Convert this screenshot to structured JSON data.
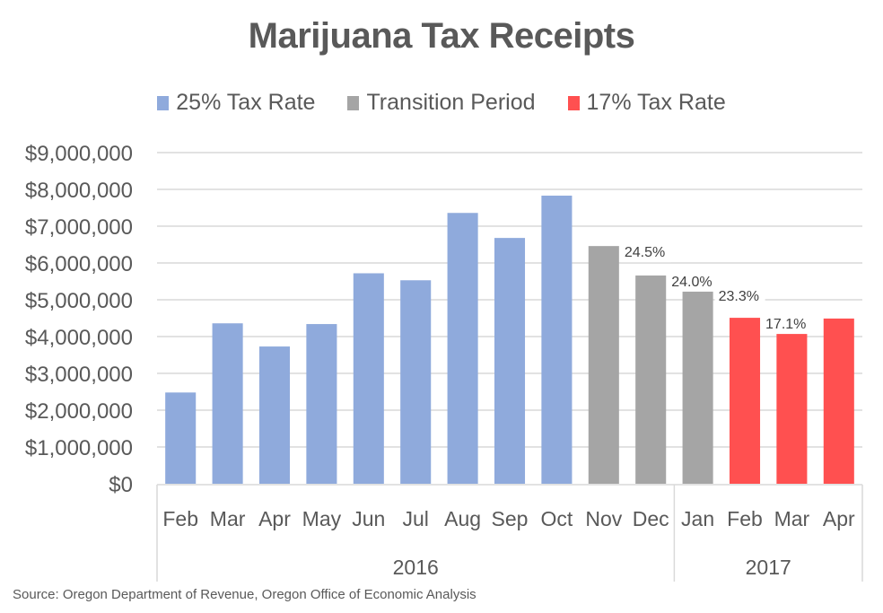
{
  "chart_data": {
    "type": "bar",
    "title": "Marijuana Tax Receipts",
    "xlabel": "",
    "ylabel": "",
    "ylim": [
      0,
      9000000
    ],
    "yticks": [
      0,
      1000000,
      2000000,
      3000000,
      4000000,
      5000000,
      6000000,
      7000000,
      8000000,
      9000000
    ],
    "ytick_labels": [
      "$0",
      "$1,000,000",
      "$2,000,000",
      "$3,000,000",
      "$4,000,000",
      "$5,000,000",
      "$6,000,000",
      "$7,000,000",
      "$8,000,000",
      "$9,000,000"
    ],
    "grid": true,
    "legend_position": "top-center",
    "legend": [
      {
        "name": "25% Tax Rate",
        "color": "#8FAADC"
      },
      {
        "name": "Transition Period",
        "color": "#A5A5A5"
      },
      {
        "name": "17% Tax Rate",
        "color": "#FF5050"
      }
    ],
    "categories": [
      "Feb",
      "Mar",
      "Apr",
      "May",
      "Jun",
      "Jul",
      "Aug",
      "Sep",
      "Oct",
      "Nov",
      "Dec",
      "Jan",
      "Feb",
      "Mar",
      "Apr"
    ],
    "category_groups": [
      {
        "label": "2016",
        "count": 11
      },
      {
        "label": "2017",
        "count": 4
      }
    ],
    "values": [
      2480000,
      4360000,
      3730000,
      4340000,
      5720000,
      5530000,
      7360000,
      6680000,
      7830000,
      6460000,
      5660000,
      5270000,
      4510000,
      4490000,
      4490000
    ],
    "series_index": [
      0,
      0,
      0,
      0,
      0,
      0,
      0,
      0,
      0,
      1,
      1,
      1,
      2,
      2,
      2
    ],
    "data_labels": [
      "",
      "",
      "",
      "",
      "",
      "",
      "",
      "",
      "",
      "24.5%",
      "24.0%",
      "23.3%",
      "17.1%",
      "",
      ""
    ]
  },
  "source_note": "Source: Oregon Department of Revenue, Oregon Office of Economic Analysis"
}
